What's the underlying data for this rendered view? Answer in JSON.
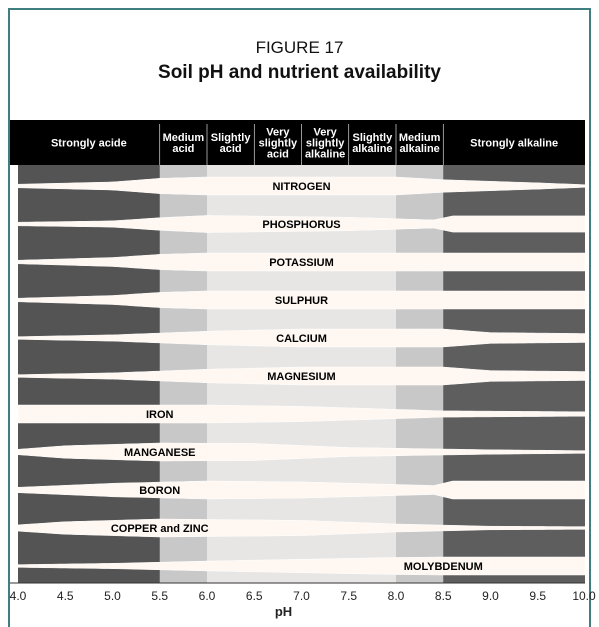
{
  "figure_label": "FIGURE 17",
  "title": "Soil pH and nutrient availability",
  "colors": {
    "header": "#000000",
    "header_text": "#ffffff",
    "background_acid": "#545454",
    "background_alkaline": "#5e5e5e",
    "band_light": "#c8c8c8",
    "band_fill": "#fff8f2",
    "frame": "#3f7f7f"
  },
  "chart_data": {
    "type": "band",
    "xlabel": "pH",
    "xlim": [
      4.0,
      10.0
    ],
    "xticks": [
      "4.0",
      "4.5",
      "5.0",
      "5.5",
      "6.0",
      "6.5",
      "7.0",
      "7.5",
      "8.0",
      "8.5",
      "9.0",
      "9.5",
      "10.0"
    ],
    "ranges": [
      {
        "label": "Strongly acide",
        "from": 4.0,
        "to": 5.5
      },
      {
        "label": "Medium acid",
        "from": 5.5,
        "to": 6.0
      },
      {
        "label": "Slightly acid",
        "from": 6.0,
        "to": 6.5
      },
      {
        "label": "Very slightly acid",
        "from": 6.5,
        "to": 7.0
      },
      {
        "label": "Very slightly alkaline",
        "from": 7.0,
        "to": 7.5
      },
      {
        "label": "Slightly alkaline",
        "from": 7.5,
        "to": 8.0
      },
      {
        "label": "Medium alkaline",
        "from": 8.0,
        "to": 8.5
      },
      {
        "label": "Strongly alkaline",
        "from": 8.5,
        "to": 10.0
      }
    ],
    "nutrients": [
      {
        "name": "NITROGEN",
        "label_x": 7.0,
        "availability": [
          [
            4.0,
            0.2
          ],
          [
            5.0,
            0.45
          ],
          [
            5.5,
            0.85
          ],
          [
            6.0,
            1.0
          ],
          [
            8.0,
            1.0
          ],
          [
            8.5,
            0.7
          ],
          [
            9.5,
            0.35
          ],
          [
            10.0,
            0.15
          ]
        ]
      },
      {
        "name": "PHOSPHORUS",
        "label_x": 7.0,
        "availability": [
          [
            4.0,
            0.2
          ],
          [
            5.0,
            0.35
          ],
          [
            5.5,
            0.7
          ],
          [
            6.0,
            0.95
          ],
          [
            7.5,
            0.75
          ],
          [
            8.4,
            0.45
          ],
          [
            8.6,
            0.9
          ],
          [
            10.0,
            0.9
          ]
        ]
      },
      {
        "name": "POTASSIUM",
        "label_x": 7.0,
        "availability": [
          [
            4.0,
            0.2
          ],
          [
            5.0,
            0.5
          ],
          [
            5.5,
            0.85
          ],
          [
            6.0,
            1.0
          ],
          [
            10.0,
            1.0
          ]
        ]
      },
      {
        "name": "SULPHUR",
        "label_x": 7.0,
        "availability": [
          [
            4.0,
            0.2
          ],
          [
            5.0,
            0.5
          ],
          [
            5.5,
            0.85
          ],
          [
            6.0,
            1.0
          ],
          [
            10.0,
            1.0
          ]
        ]
      },
      {
        "name": "CALCIUM",
        "label_x": 7.0,
        "availability": [
          [
            4.0,
            0.15
          ],
          [
            5.0,
            0.35
          ],
          [
            6.0,
            0.75
          ],
          [
            7.0,
            1.0
          ],
          [
            8.5,
            1.0
          ],
          [
            9.0,
            0.6
          ],
          [
            10.0,
            0.5
          ]
        ]
      },
      {
        "name": "MAGNESIUM",
        "label_x": 7.0,
        "availability": [
          [
            4.0,
            0.15
          ],
          [
            5.0,
            0.35
          ],
          [
            6.0,
            0.75
          ],
          [
            7.0,
            1.0
          ],
          [
            8.5,
            1.0
          ],
          [
            9.0,
            0.6
          ],
          [
            10.0,
            0.5
          ]
        ]
      },
      {
        "name": "IRON",
        "label_x": 5.5,
        "availability": [
          [
            4.0,
            1.0
          ],
          [
            6.0,
            1.0
          ],
          [
            7.0,
            0.85
          ],
          [
            8.5,
            0.35
          ],
          [
            10.0,
            0.25
          ]
        ]
      },
      {
        "name": "MANGANESE",
        "label_x": 5.5,
        "availability": [
          [
            4.0,
            0.3
          ],
          [
            4.5,
            0.7
          ],
          [
            5.5,
            1.0
          ],
          [
            6.5,
            0.95
          ],
          [
            7.5,
            0.5
          ],
          [
            9.0,
            0.25
          ],
          [
            10.0,
            0.15
          ]
        ]
      },
      {
        "name": "BORON",
        "label_x": 5.5,
        "availability": [
          [
            4.0,
            0.3
          ],
          [
            5.0,
            0.75
          ],
          [
            6.0,
            1.0
          ],
          [
            7.0,
            0.9
          ],
          [
            8.4,
            0.5
          ],
          [
            8.6,
            1.0
          ],
          [
            10.0,
            1.0
          ]
        ]
      },
      {
        "name": "COPPER and ZINC",
        "label_x": 5.5,
        "availability": [
          [
            4.0,
            0.35
          ],
          [
            4.5,
            0.7
          ],
          [
            5.5,
            1.0
          ],
          [
            7.0,
            0.85
          ],
          [
            8.0,
            0.45
          ],
          [
            9.0,
            0.2
          ],
          [
            10.0,
            0.15
          ]
        ]
      },
      {
        "name": "MOLYBDENUM",
        "label_x": 8.5,
        "availability": [
          [
            4.0,
            0.15
          ],
          [
            5.0,
            0.3
          ],
          [
            6.0,
            0.55
          ],
          [
            7.0,
            0.75
          ],
          [
            8.0,
            0.95
          ],
          [
            8.5,
            1.0
          ],
          [
            10.0,
            1.0
          ]
        ]
      }
    ]
  }
}
